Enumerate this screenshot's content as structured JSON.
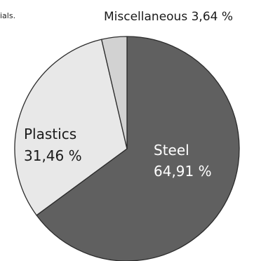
{
  "caption_fragment": "ials.",
  "chart_data": {
    "type": "pie",
    "title": "",
    "categories": [
      "Steel",
      "Plastics",
      "Miscellaneous"
    ],
    "values": [
      64.91,
      31.46,
      3.64
    ],
    "value_labels": [
      "64,91 %",
      "31,46 %",
      "3,64 %"
    ],
    "legend": "none",
    "colors": {
      "steel": "#606060",
      "plastics": "#e8e8e8",
      "miscellaneous": "#d2d2d2",
      "outline": "#2b2b2b",
      "steel_text": "#ffffff",
      "plastics_text": "#1a1a1a"
    }
  }
}
